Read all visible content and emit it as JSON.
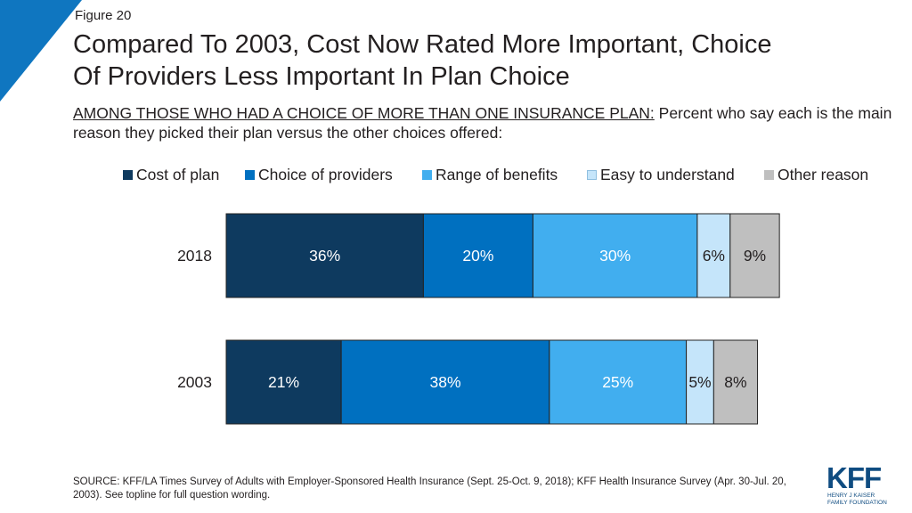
{
  "figure_label": "Figure 20",
  "title_line1": "Compared To 2003, Cost Now Rated More Important, Choice",
  "title_line2": "Of Providers Less Important In Plan Choice",
  "subtitle_lead": "AMONG THOSE WHO HAD A CHOICE OF MORE THAN ONE INSURANCE PLAN:",
  "subtitle_rest": " Percent who say each is the main reason they picked their plan versus the other choices offered:",
  "source": "SOURCE: KFF/LA Times Survey of Adults with Employer-Sponsored Health Insurance (Sept. 25-Oct. 9, 2018); KFF Health Insurance Survey (Apr. 30-Jul. 20, 2003). See topline for full question wording.",
  "logo": {
    "text": "KFF",
    "subtext_line1": "HENRY J KAISER",
    "subtext_line2": "FAMILY FOUNDATION",
    "color": "#0f4c81"
  },
  "accent_color": "#0f76c0",
  "chart_data": {
    "type": "bar",
    "orientation": "horizontal",
    "stacked": true,
    "categories": [
      "2018",
      "2003"
    ],
    "series": [
      {
        "name": "Cost of plan",
        "color": "#0e3a5f",
        "label_color": "#ffffff",
        "values": [
          36,
          21
        ],
        "labels": [
          "36%",
          "21%"
        ]
      },
      {
        "name": "Choice of providers",
        "color": "#0070c0",
        "label_color": "#ffffff",
        "values": [
          20,
          38
        ],
        "labels": [
          "20%",
          "38%"
        ]
      },
      {
        "name": "Range of benefits",
        "color": "#41aeef",
        "label_color": "#ffffff",
        "values": [
          30,
          25
        ],
        "labels": [
          "30%",
          "25%"
        ]
      },
      {
        "name": "Easy to understand",
        "color": "#c5e5fa",
        "label_color": "#231f20",
        "values": [
          6,
          5
        ],
        "labels": [
          "6%",
          "5%"
        ]
      },
      {
        "name": "Other reason",
        "color": "#bfbfbf",
        "label_color": "#231f20",
        "values": [
          9,
          8
        ],
        "labels": [
          "9%",
          "8%"
        ]
      }
    ],
    "xlim": [
      0,
      100
    ],
    "grid": false,
    "legend_position": "top"
  }
}
